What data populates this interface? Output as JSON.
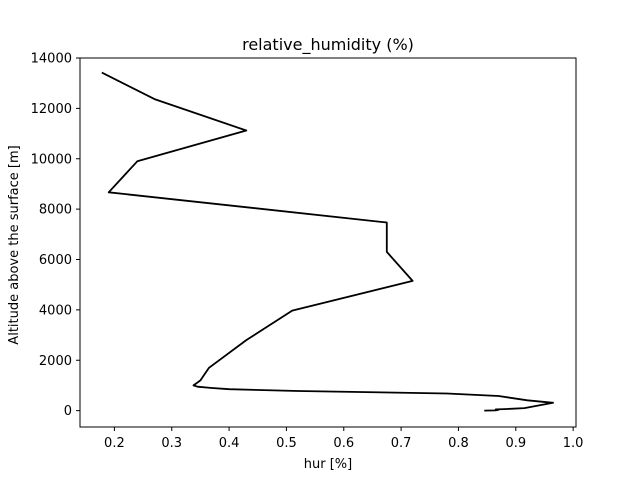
{
  "chart_data": {
    "type": "line",
    "title": "relative_humidity (%)",
    "xlabel": "hur [%]",
    "ylabel": "Altitude above the surface [m]",
    "xlim": [
      0.14,
      1.005
    ],
    "ylim": [
      -650,
      14000
    ],
    "xticks": [
      0.2,
      0.3,
      0.4,
      0.5,
      0.6,
      0.7,
      0.8,
      0.9,
      1.0
    ],
    "xtick_labels": [
      "0.2",
      "0.3",
      "0.4",
      "0.5",
      "0.6",
      "0.7",
      "0.8",
      "0.9",
      "1.0"
    ],
    "yticks": [
      0,
      2000,
      4000,
      6000,
      8000,
      10000,
      12000,
      14000
    ],
    "ytick_labels": [
      "0",
      "2000",
      "4000",
      "6000",
      "8000",
      "10000",
      "12000",
      "14000"
    ],
    "grid": false,
    "line_color": "#000000",
    "series": [
      {
        "x": [
          0.845,
          0.865,
          0.87,
          0.865,
          0.88,
          0.915,
          0.965,
          0.92,
          0.87,
          0.78,
          0.52,
          0.4,
          0.37,
          0.345,
          0.338,
          0.35,
          0.365,
          0.43,
          0.51,
          0.72,
          0.675,
          0.675,
          0.19,
          0.24,
          0.43,
          0.27,
          0.178
        ],
        "y": [
          0,
          10,
          30,
          50,
          60,
          100,
          310,
          410,
          580,
          680,
          780,
          850,
          900,
          950,
          1000,
          1200,
          1700,
          2800,
          3970,
          5150,
          6300,
          7470,
          8670,
          9900,
          11120,
          12370,
          13420
        ]
      }
    ]
  }
}
